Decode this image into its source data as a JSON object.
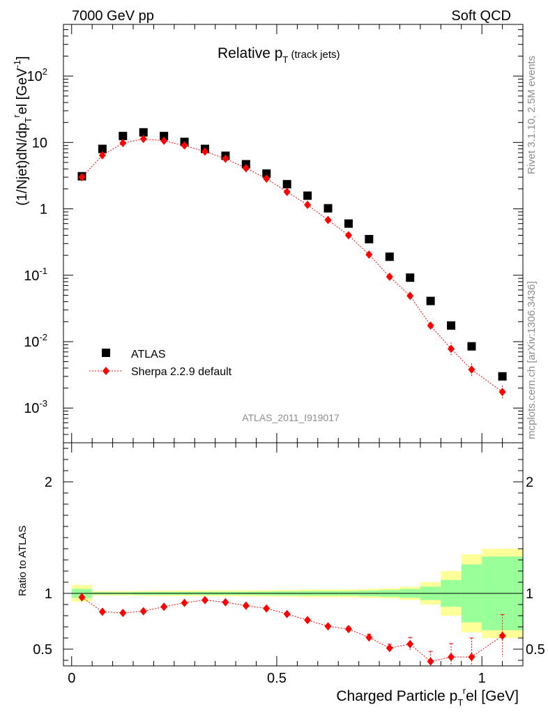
{
  "header": {
    "left": "7000 GeV pp",
    "right": "Soft QCD"
  },
  "side_text": {
    "rivet": "Rivet 3.1.10,  2.5M events",
    "mcplots": "mcplots.cern.ch [arXiv:1306.3436]"
  },
  "analysis_id": "ATLAS_2011_I919017",
  "chart_data": [
    {
      "type": "scatter",
      "title_main": "Relative p",
      "title_sub": "T",
      "title_suffix": " (track jets)",
      "ylabel": "(1/Njet)dN/dp",
      "ylabel_sub": "T",
      "ylabel_sup": "r",
      "ylabel_tail": "el [GeV",
      "ylabel_unit_sup": "-1",
      "ylabel_close": "]",
      "yscale": "log",
      "xlim": [
        -0.02,
        1.1
      ],
      "ylim": [
        0.0003,
        600
      ],
      "y_ticks": [
        {
          "v": 100,
          "base": "10",
          "exp": "2"
        },
        {
          "v": 10,
          "base": "10",
          "exp": ""
        },
        {
          "v": 1,
          "base": "1",
          "exp": ""
        },
        {
          "v": 0.1,
          "base": "10",
          "exp": "-1"
        },
        {
          "v": 0.01,
          "base": "10",
          "exp": "-2"
        },
        {
          "v": 0.001,
          "base": "10",
          "exp": "-3"
        }
      ],
      "legend": [
        {
          "name": "ATLAS",
          "marker": "square",
          "color": "#000000"
        },
        {
          "name": "Sherpa 2.2.9 default",
          "marker": "diamond",
          "color": "#ff0000"
        }
      ],
      "x": [
        0.025,
        0.075,
        0.125,
        0.175,
        0.225,
        0.275,
        0.325,
        0.375,
        0.425,
        0.475,
        0.525,
        0.575,
        0.625,
        0.675,
        0.725,
        0.775,
        0.825,
        0.875,
        0.925,
        0.975,
        1.05
      ],
      "series": [
        {
          "name": "ATLAS",
          "values": [
            3.1,
            8.0,
            12.5,
            14.2,
            12.5,
            10.2,
            8.0,
            6.3,
            4.7,
            3.4,
            2.35,
            1.58,
            1.02,
            0.6,
            0.35,
            0.19,
            0.092,
            0.041,
            0.0175,
            0.0085,
            0.003
          ]
        },
        {
          "name": "Sherpa 2.2.9 default",
          "values": [
            3.0,
            6.4,
            9.8,
            11.3,
            10.6,
            9.0,
            7.3,
            5.7,
            4.1,
            2.85,
            1.8,
            1.15,
            0.68,
            0.4,
            0.205,
            0.095,
            0.049,
            0.0175,
            0.0078,
            0.0038,
            0.00175
          ]
        }
      ]
    },
    {
      "type": "scatter",
      "ylabel": "Ratio to ATLAS",
      "xlabel": "Charged Particle p",
      "xlabel_sub": "T",
      "xlabel_sup": "r",
      "xlabel_tail": "el [GeV]",
      "xlim": [
        -0.02,
        1.1
      ],
      "ylim": [
        0.35,
        2.35
      ],
      "x_ticks": [
        0,
        0.5,
        1
      ],
      "x_tick_labels": [
        "0",
        "0.5",
        "1"
      ],
      "y_ticks": [
        0.5,
        1,
        2
      ],
      "y_tick_labels": [
        "0.5",
        "1",
        "2"
      ],
      "bins": [
        [
          0,
          0.05
        ],
        [
          0.05,
          0.1
        ],
        [
          0.1,
          0.15
        ],
        [
          0.15,
          0.2
        ],
        [
          0.2,
          0.25
        ],
        [
          0.25,
          0.3
        ],
        [
          0.3,
          0.35
        ],
        [
          0.35,
          0.4
        ],
        [
          0.4,
          0.45
        ],
        [
          0.45,
          0.5
        ],
        [
          0.5,
          0.55
        ],
        [
          0.55,
          0.6
        ],
        [
          0.6,
          0.65
        ],
        [
          0.65,
          0.7
        ],
        [
          0.7,
          0.75
        ],
        [
          0.75,
          0.8
        ],
        [
          0.8,
          0.85
        ],
        [
          0.85,
          0.9
        ],
        [
          0.9,
          0.95
        ],
        [
          0.95,
          1.0
        ],
        [
          1.0,
          1.1
        ]
      ],
      "band_outer": [
        0.075,
        0.02,
        0.02,
        0.022,
        0.024,
        0.025,
        0.026,
        0.026,
        0.027,
        0.028,
        0.03,
        0.035,
        0.035,
        0.035,
        0.04,
        0.045,
        0.06,
        0.1,
        0.2,
        0.35,
        0.4
      ],
      "band_inner": [
        0.04,
        0.01,
        0.01,
        0.012,
        0.013,
        0.013,
        0.014,
        0.014,
        0.015,
        0.016,
        0.018,
        0.02,
        0.02,
        0.02,
        0.025,
        0.03,
        0.04,
        0.06,
        0.12,
        0.26,
        0.33
      ],
      "colors": {
        "outer": "#ffff99",
        "inner": "#99ff99",
        "ratio": "#ff0000"
      },
      "series": [
        {
          "name": "Sherpa 2.2.9 default",
          "values": [
            0.965,
            0.835,
            0.825,
            0.84,
            0.88,
            0.915,
            0.94,
            0.92,
            0.89,
            0.865,
            0.815,
            0.76,
            0.705,
            0.68,
            0.605,
            0.51,
            0.545,
            0.39,
            0.43,
            0.43,
            0.62
          ],
          "err": [
            0.01,
            0.01,
            0.01,
            0.01,
            0.01,
            0.01,
            0.01,
            0.01,
            0.01,
            0.01,
            0.01,
            0.015,
            0.015,
            0.02,
            0.03,
            0.035,
            0.06,
            0.09,
            0.12,
            0.17,
            0.19
          ]
        }
      ]
    }
  ]
}
